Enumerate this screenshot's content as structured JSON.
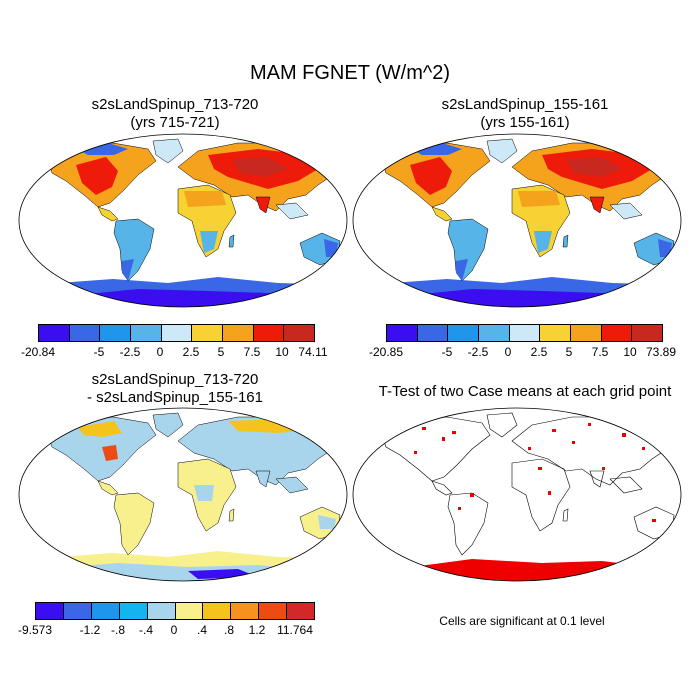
{
  "title": "MAM FGNET (W/m^2)",
  "panels": [
    {
      "line1": "s2sLandSpinup_713-720",
      "line2": "(yrs 715-721)"
    },
    {
      "line1": "s2sLandSpinup_155-161",
      "line2": "(yrs 155-161)"
    },
    {
      "line1": "s2sLandSpinup_713-720",
      "line2": "- s2sLandSpinup_155-161"
    },
    {
      "line1": "T-Test of two Case means at each grid point"
    }
  ],
  "colorbars": [
    {
      "labels": [
        "-20.84",
        "-5",
        "-2.5",
        "0",
        "2.5",
        "5",
        "7.5",
        "10",
        "74.11"
      ],
      "colors": [
        "#3a0ef0",
        "#3a67e6",
        "#1f95ec",
        "#56b4e9",
        "#cde8f7",
        "#f6d232",
        "#f5a21c",
        "#ee1a0a",
        "#c8281f"
      ]
    },
    {
      "labels": [
        "-20.85",
        "-5",
        "-2.5",
        "0",
        "2.5",
        "5",
        "7.5",
        "10",
        "73.89"
      ],
      "colors": [
        "#3a0ef0",
        "#3a67e6",
        "#1f95ec",
        "#56b4e9",
        "#cde8f7",
        "#f6d232",
        "#f5a21c",
        "#ee1a0a",
        "#c8281f"
      ]
    },
    {
      "labels": [
        "-9.573",
        "-1.2",
        "-.8",
        "-.4",
        "0",
        ".4",
        ".8",
        "1.2",
        "11.764"
      ],
      "colors": [
        "#3a0ef0",
        "#3a67e6",
        "#1f95ec",
        "#14b5ef",
        "#a8d4ec",
        "#f7f08c",
        "#f6c31c",
        "#f5941c",
        "#ee4a14",
        "#d42828"
      ]
    }
  ],
  "significance_note": "Cells are significant at 0.1 level"
}
